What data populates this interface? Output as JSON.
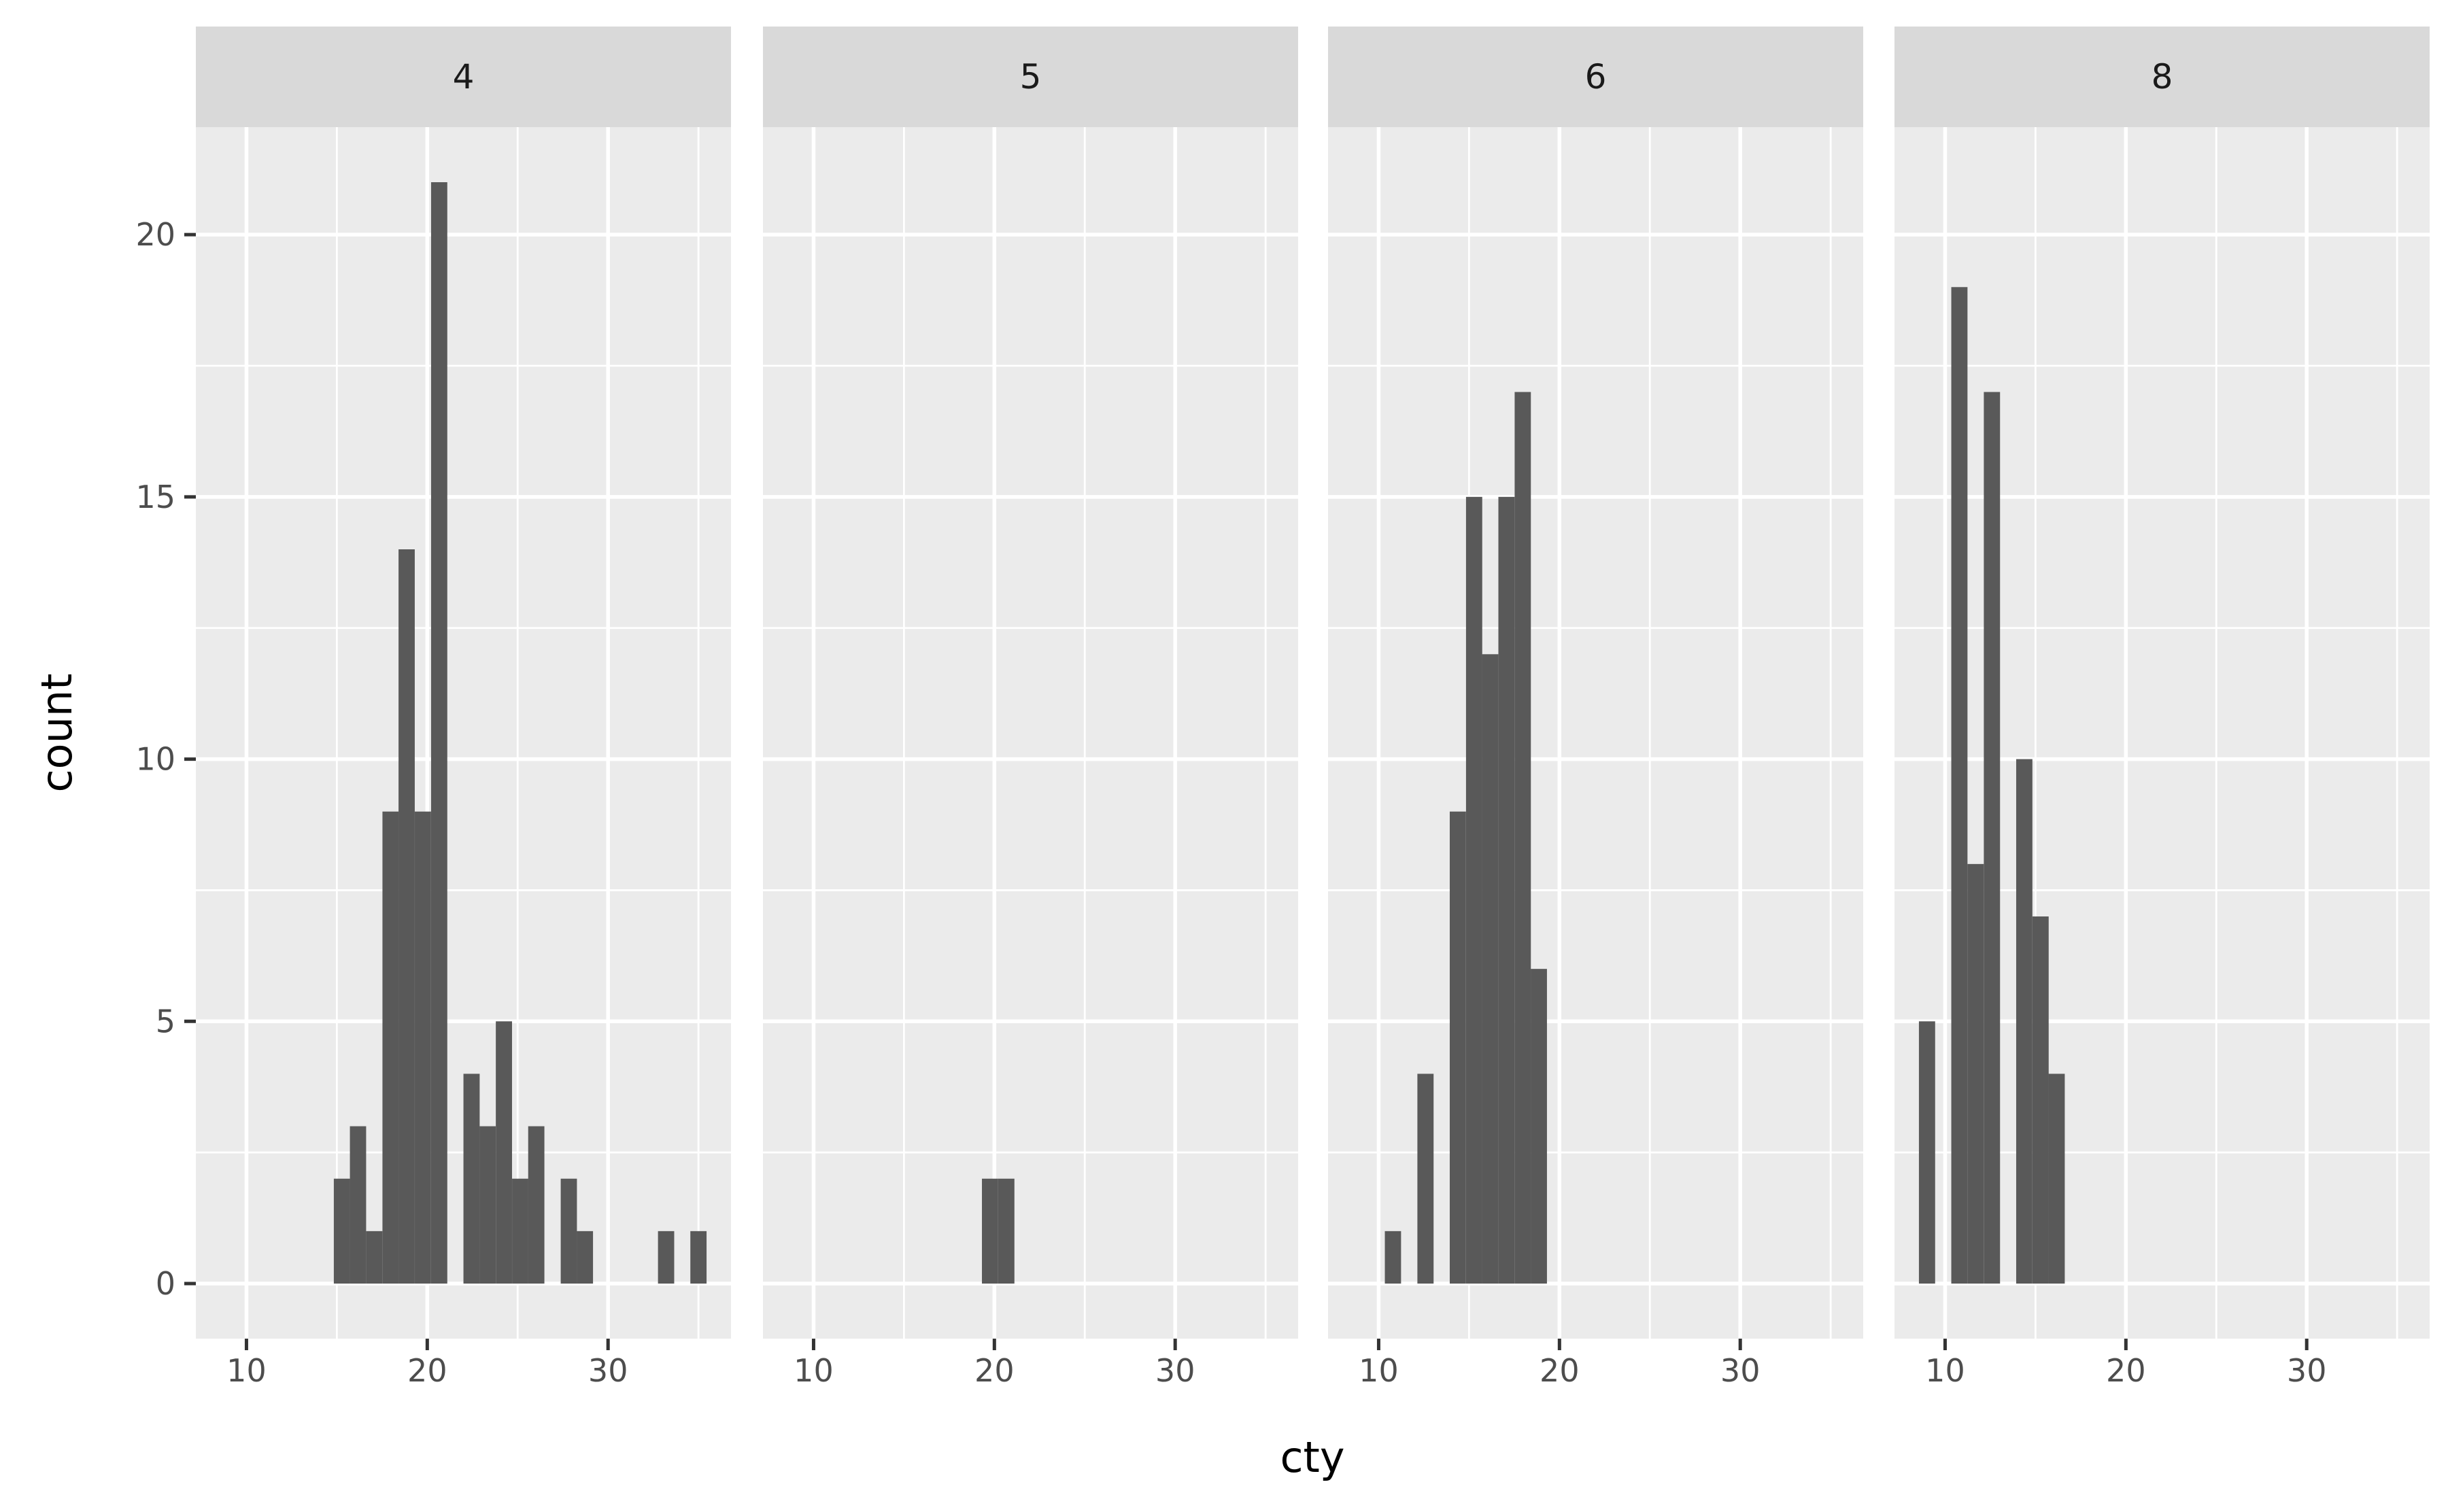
{
  "chart_data": {
    "type": "bar",
    "subtype": "histogram",
    "facet_variable_levels": [
      "4",
      "5",
      "6",
      "8"
    ],
    "xlabel": "cty",
    "ylabel": "count",
    "xlim": [
      7.2,
      36.8
    ],
    "ylim": [
      -1.05,
      22.05
    ],
    "binwidth": 0.8966,
    "x_ticks": [
      "10",
      "20",
      "30"
    ],
    "y_ticks": [
      "0",
      "5",
      "10",
      "15",
      "20"
    ],
    "grid": true,
    "bin_centers": [
      9,
      9.9,
      10.79,
      11.69,
      12.59,
      13.48,
      14.38,
      15.28,
      16.17,
      17.07,
      17.97,
      18.86,
      19.76,
      20.66,
      21.55,
      22.45,
      23.34,
      24.24,
      25.14,
      26.03,
      26.93,
      27.83,
      28.72,
      29.62,
      30.52,
      31.41,
      32.31,
      33.21,
      34.1,
      35
    ],
    "facets": [
      {
        "label": "4",
        "counts": [
          0,
          0,
          0,
          0,
          0,
          0,
          0,
          2,
          3,
          1,
          9,
          14,
          9,
          21,
          0,
          4,
          3,
          5,
          2,
          3,
          0,
          2,
          1,
          0,
          0,
          0,
          0,
          1,
          0,
          1
        ]
      },
      {
        "label": "5",
        "counts": [
          0,
          0,
          0,
          0,
          0,
          0,
          0,
          0,
          0,
          0,
          0,
          0,
          2,
          2,
          0,
          0,
          0,
          0,
          0,
          0,
          0,
          0,
          0,
          0,
          0,
          0,
          0,
          0,
          0,
          0
        ]
      },
      {
        "label": "6",
        "counts": [
          0,
          0,
          1,
          0,
          4,
          0,
          9,
          15,
          12,
          15,
          17,
          6,
          0,
          0,
          0,
          0,
          0,
          0,
          0,
          0,
          0,
          0,
          0,
          0,
          0,
          0,
          0,
          0,
          0,
          0
        ]
      },
      {
        "label": "8",
        "counts": [
          5,
          0,
          19,
          8,
          17,
          0,
          10,
          7,
          4,
          0,
          0,
          0,
          0,
          0,
          0,
          0,
          0,
          0,
          0,
          0,
          0,
          0,
          0,
          0,
          0,
          0,
          0,
          0,
          0,
          0
        ]
      }
    ],
    "colors": {
      "bar": "#595959",
      "panel_bg": "#ebebeb",
      "strip_bg": "#d9d9d9",
      "grid": "#ffffff"
    }
  }
}
